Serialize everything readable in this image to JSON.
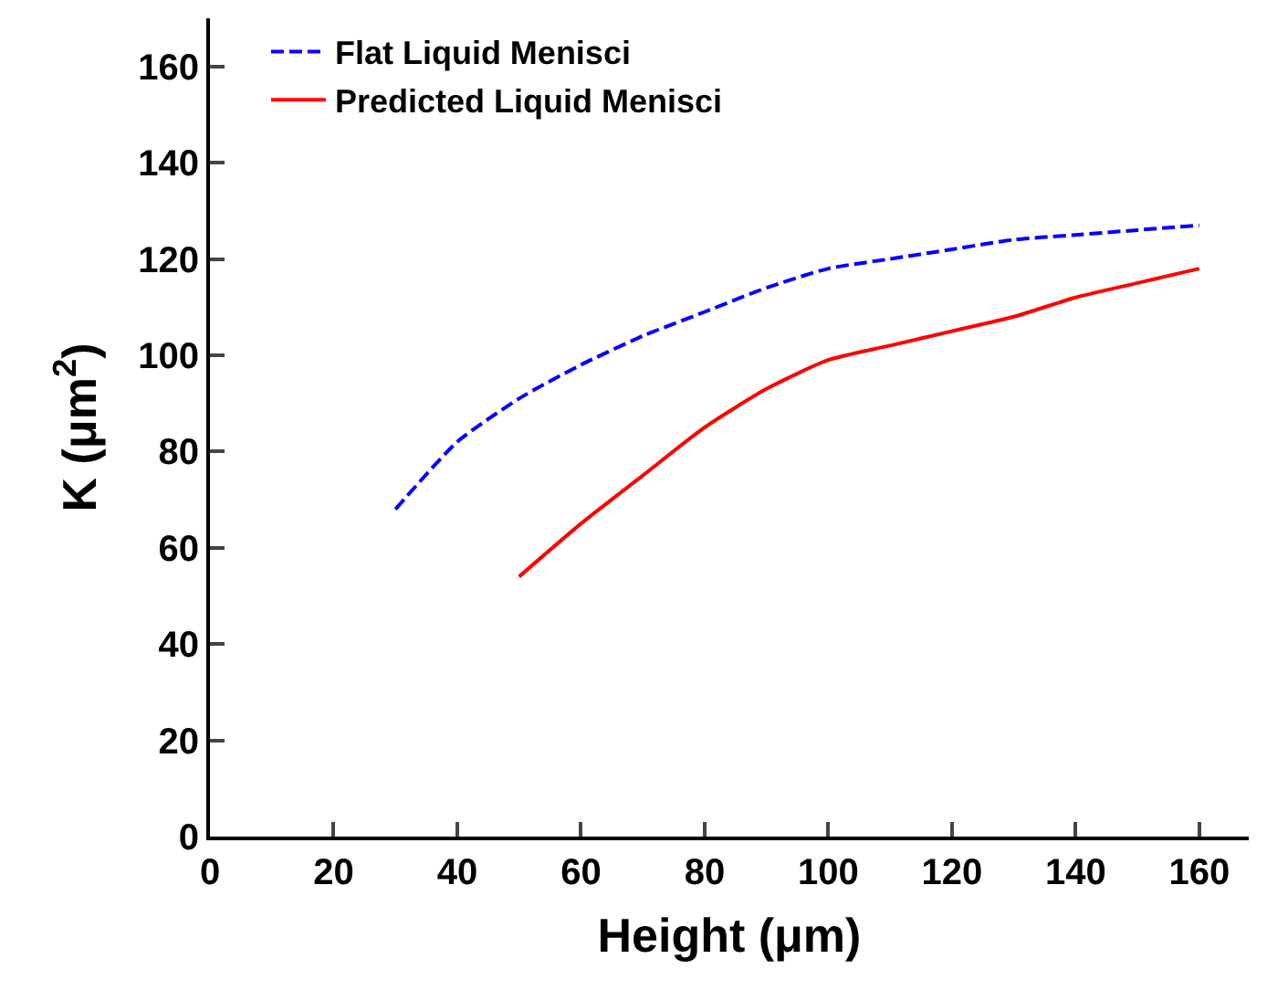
{
  "chart_data": {
    "type": "line",
    "xlabel": "Height (μm)",
    "ylabel": "K (μm$^{2}$)",
    "xlim": [
      0,
      168
    ],
    "ylim": [
      0,
      170
    ],
    "xticks": [
      0,
      20,
      40,
      60,
      80,
      100,
      120,
      140,
      160
    ],
    "yticks": [
      0,
      20,
      40,
      60,
      80,
      100,
      120,
      140,
      160
    ],
    "legend": "top left",
    "marker": "none",
    "series": [
      {
        "name": "Flat Liquid Menisci",
        "color": "#0000ff",
        "line_style": "dashed",
        "x": [
          30,
          40,
          50,
          60,
          70,
          80,
          90,
          100,
          110,
          120,
          130,
          140,
          150,
          160
        ],
        "values": [
          68,
          82,
          91,
          98,
          104,
          109,
          114,
          118,
          120,
          122,
          124,
          125,
          126,
          127
        ]
      },
      {
        "name": "Predicted Liquid Menisci",
        "color": "#ff0000",
        "line_style": "solid",
        "x": [
          50,
          60,
          70,
          80,
          90,
          100,
          110,
          120,
          130,
          140,
          150,
          160
        ],
        "values": [
          54,
          65,
          75,
          85,
          93,
          99,
          102,
          105,
          108,
          112,
          115,
          118
        ]
      }
    ]
  }
}
